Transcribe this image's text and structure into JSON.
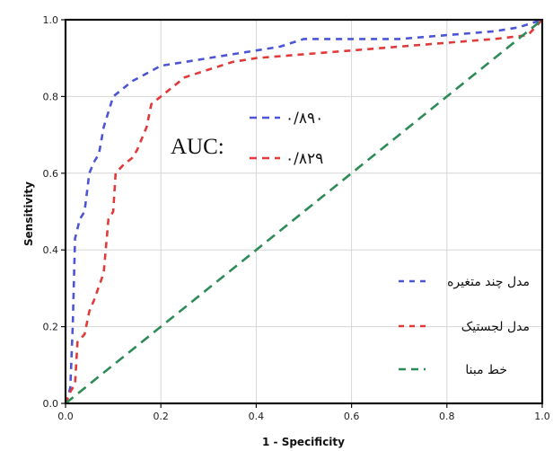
{
  "chart_data": {
    "type": "line",
    "xlabel": "1 - Specificity",
    "ylabel": "Sensitivity",
    "xlim": [
      0,
      1
    ],
    "ylim": [
      0,
      1
    ],
    "x_ticks": [
      "0.0",
      "0.2",
      "0.4",
      "0.6",
      "0.8",
      "1.0"
    ],
    "y_ticks": [
      "0.0",
      "0.2",
      "0.4",
      "0.6",
      "0.8",
      "1.0"
    ],
    "grid": true,
    "legend_placement": "bottom-right",
    "auc": {
      "label": "AUC:",
      "values": [
        "۰/۸۹۰",
        "۰/۸۲۹"
      ]
    },
    "series": [
      {
        "name": "مدل چند متغیره",
        "color": "#4b55d6",
        "style": "dashed",
        "points": [
          [
            0,
            0
          ],
          [
            0.01,
            0.04
          ],
          [
            0.015,
            0.2
          ],
          [
            0.02,
            0.43
          ],
          [
            0.03,
            0.48
          ],
          [
            0.04,
            0.5
          ],
          [
            0.05,
            0.6
          ],
          [
            0.06,
            0.63
          ],
          [
            0.07,
            0.65
          ],
          [
            0.08,
            0.72
          ],
          [
            0.09,
            0.76
          ],
          [
            0.1,
            0.8
          ],
          [
            0.12,
            0.82
          ],
          [
            0.14,
            0.84
          ],
          [
            0.17,
            0.86
          ],
          [
            0.2,
            0.88
          ],
          [
            0.25,
            0.89
          ],
          [
            0.3,
            0.9
          ],
          [
            0.35,
            0.91
          ],
          [
            0.4,
            0.92
          ],
          [
            0.45,
            0.93
          ],
          [
            0.5,
            0.95
          ],
          [
            0.6,
            0.95
          ],
          [
            0.7,
            0.95
          ],
          [
            0.8,
            0.96
          ],
          [
            0.9,
            0.97
          ],
          [
            0.95,
            0.98
          ],
          [
            1,
            1
          ]
        ]
      },
      {
        "name": "مدل لجستیک",
        "color": "#e03a3a",
        "style": "dashed",
        "points": [
          [
            0,
            0
          ],
          [
            0.01,
            0.03
          ],
          [
            0.02,
            0.05
          ],
          [
            0.025,
            0.16
          ],
          [
            0.04,
            0.18
          ],
          [
            0.05,
            0.24
          ],
          [
            0.06,
            0.27
          ],
          [
            0.08,
            0.34
          ],
          [
            0.09,
            0.48
          ],
          [
            0.1,
            0.5
          ],
          [
            0.105,
            0.6
          ],
          [
            0.12,
            0.62
          ],
          [
            0.14,
            0.64
          ],
          [
            0.15,
            0.66
          ],
          [
            0.17,
            0.72
          ],
          [
            0.18,
            0.78
          ],
          [
            0.2,
            0.8
          ],
          [
            0.22,
            0.82
          ],
          [
            0.25,
            0.85
          ],
          [
            0.3,
            0.87
          ],
          [
            0.35,
            0.89
          ],
          [
            0.4,
            0.9
          ],
          [
            0.5,
            0.91
          ],
          [
            0.6,
            0.92
          ],
          [
            0.7,
            0.93
          ],
          [
            0.8,
            0.94
          ],
          [
            0.9,
            0.95
          ],
          [
            0.97,
            0.96
          ],
          [
            1,
            1
          ]
        ]
      },
      {
        "name": "خط مبنا",
        "color": "#2e8b57",
        "style": "dashed",
        "points": [
          [
            0,
            0
          ],
          [
            1,
            1
          ]
        ]
      }
    ]
  }
}
